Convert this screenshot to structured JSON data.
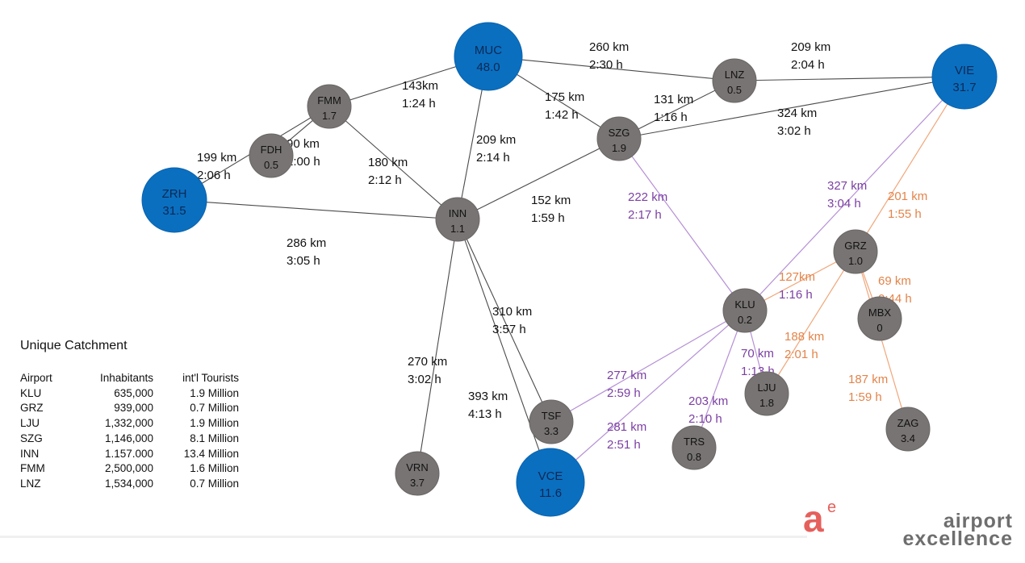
{
  "colors": {
    "hub": "#0b6fc0",
    "node": "#787473",
    "black_edge": "#4a4a4a",
    "purple_edge": "#b590d6",
    "orange_edge": "#f0a77a",
    "purple_text": "#7b3fa3",
    "orange_text": "#e3844a"
  },
  "nodes": [
    {
      "id": "MUC",
      "value": "48.0",
      "hub": true
    },
    {
      "id": "LNZ",
      "value": "0.5",
      "hub": false
    },
    {
      "id": "VIE",
      "value": "31.7",
      "hub": true
    },
    {
      "id": "FMM",
      "value": "1.7",
      "hub": false
    },
    {
      "id": "FDH",
      "value": "0.5",
      "hub": false
    },
    {
      "id": "ZRH",
      "value": "31.5",
      "hub": true
    },
    {
      "id": "SZG",
      "value": "1.9",
      "hub": false
    },
    {
      "id": "INN",
      "value": "1.1",
      "hub": false
    },
    {
      "id": "GRZ",
      "value": "1.0",
      "hub": false
    },
    {
      "id": "KLU",
      "value": "0.2",
      "hub": false
    },
    {
      "id": "MBX",
      "value": "0",
      "hub": false
    },
    {
      "id": "LJU",
      "value": "1.8",
      "hub": false
    },
    {
      "id": "ZAG",
      "value": "3.4",
      "hub": false
    },
    {
      "id": "TRS",
      "value": "0.8",
      "hub": false
    },
    {
      "id": "TSF",
      "value": "3.3",
      "hub": false
    },
    {
      "id": "VCE",
      "value": "11.6",
      "hub": true
    },
    {
      "id": "VRN",
      "value": "3.7",
      "hub": false
    }
  ],
  "edges": [
    {
      "from": "MUC",
      "to": "LNZ",
      "distance": "260 km",
      "time": "2:30 h",
      "group": "black"
    },
    {
      "from": "LNZ",
      "to": "VIE",
      "distance": "209 km",
      "time": "2:04 h",
      "group": "black"
    },
    {
      "from": "MUC",
      "to": "FMM",
      "distance": "143km",
      "time": "1:24 h",
      "group": "black"
    },
    {
      "from": "MUC",
      "to": "SZG",
      "distance": "175 km",
      "time": "1:42 h",
      "group": "black"
    },
    {
      "from": "LNZ",
      "to": "SZG",
      "distance": "131 km",
      "time": "1:16 h",
      "group": "black"
    },
    {
      "from": "SZG",
      "to": "VIE",
      "distance": "324 km",
      "time": "3:02 h",
      "group": "black"
    },
    {
      "from": "FMM",
      "to": "ZRH",
      "distance": "199 km",
      "time": "2:06 h",
      "group": "black"
    },
    {
      "from": "FDH",
      "to": "FMM",
      "distance": "90 km",
      "time": "1:00 h",
      "group": "black"
    },
    {
      "from": "FMM",
      "to": "INN",
      "distance": "180 km",
      "time": "2:12 h",
      "group": "black"
    },
    {
      "from": "MUC",
      "to": "INN",
      "distance": "209 km",
      "time": "2:14 h",
      "group": "black"
    },
    {
      "from": "SZG",
      "to": "INN",
      "distance": "152 km",
      "time": "1:59 h",
      "group": "black"
    },
    {
      "from": "ZRH",
      "to": "INN",
      "distance": "286 km",
      "time": "3:05 h",
      "group": "black"
    },
    {
      "from": "INN",
      "to": "TSF",
      "distance": "310 km",
      "time": "3:57 h",
      "group": "black"
    },
    {
      "from": "INN",
      "to": "VRN",
      "distance": "270 km",
      "time": "3:02 h",
      "group": "black"
    },
    {
      "from": "INN",
      "to": "VCE",
      "distance": "393 km",
      "time": "4:13 h",
      "group": "black"
    },
    {
      "from": "SZG",
      "to": "KLU",
      "distance": "222 km",
      "time": "2:17 h",
      "group": "purple"
    },
    {
      "from": "VIE",
      "to": "KLU",
      "distance": "327 km",
      "time": "3:04 h",
      "group": "purple"
    },
    {
      "from": "VIE",
      "to": "GRZ",
      "distance": "201 km",
      "time": "1:55 h",
      "group": "orange"
    },
    {
      "from": "GRZ",
      "to": "KLU",
      "distance": "127km",
      "time": "1:16 h",
      "group": "orange"
    },
    {
      "from": "GRZ",
      "to": "MBX",
      "distance": "69 km",
      "time": "0:44 h",
      "group": "orange"
    },
    {
      "from": "GRZ",
      "to": "LJU",
      "distance": "188 km",
      "time": "2:01 h",
      "group": "orange"
    },
    {
      "from": "KLU",
      "to": "LJU",
      "distance": "70 km",
      "time": "1:13 h",
      "group": "purple"
    },
    {
      "from": "GRZ",
      "to": "ZAG",
      "distance": "187 km",
      "time": "1:59 h",
      "group": "orange"
    },
    {
      "from": "KLU",
      "to": "TSF",
      "distance": "277 km",
      "time": "2:59 h",
      "group": "purple"
    },
    {
      "from": "KLU",
      "to": "VCE",
      "distance": "281 km",
      "time": "2:51 h",
      "group": "purple"
    },
    {
      "from": "KLU",
      "to": "TRS",
      "distance": "203 km",
      "time": "2:10 h",
      "group": "purple"
    }
  ],
  "catchment": {
    "title": "Unique Catchment",
    "headers": [
      "Airport",
      "Inhabitants",
      "int'l Tourists"
    ],
    "rows": [
      [
        "KLU",
        "635,000",
        "1.9 Million"
      ],
      [
        "GRZ",
        "939,000",
        "0.7 Million"
      ],
      [
        "LJU",
        "1,332,000",
        "1.9 Million"
      ],
      [
        "SZG",
        "1,146,000",
        "8.1 Million"
      ],
      [
        "INN",
        "1.157.000",
        "13.4 Million"
      ],
      [
        "FMM",
        "2,500,000",
        "1.6 Million"
      ],
      [
        "LNZ",
        "1,534,000",
        "0.7 Million"
      ]
    ]
  },
  "logo": {
    "mark": "a",
    "mark_sup": "e",
    "line1": "airport",
    "line2": "excellence"
  }
}
